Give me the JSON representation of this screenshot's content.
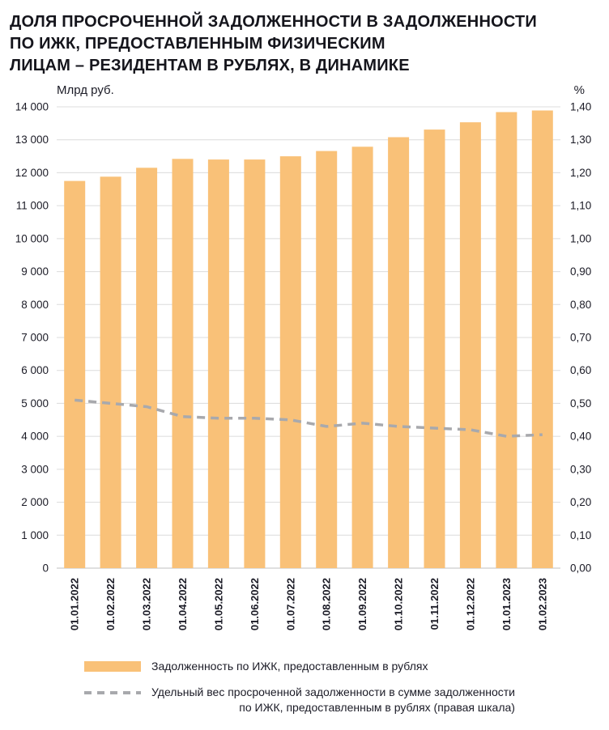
{
  "header": {
    "title_lines": [
      "ДОЛЯ ПРОСРОЧЕННОЙ ЗАДОЛЖЕННОСТИ В ЗАДОЛЖЕННОСТИ",
      "ПО ИЖК, ПРЕДОСТАВЛЕННЫМ ФИЗИЧЕСКИМ",
      "ЛИЦАМ – РЕЗИДЕНТАМ В РУБЛЯХ, В ДИНАМИКЕ"
    ],
    "left_unit": "Млрд руб.",
    "right_unit": "%"
  },
  "legend": {
    "bar_label": "Задолженность по ИЖК, предоставленным в рублях",
    "line_label_lines": [
      "Удельный вес просроченной задолженности в сумме задолженности",
      "по ИЖК, предоставленным в рублях (правая шкала)"
    ]
  },
  "colors": {
    "bar": "#F9C178",
    "line": "#A8A9AD",
    "grid": "#DCDCDC",
    "axis": "#BFBFBF",
    "text": "#1B1B26"
  },
  "chart_data": {
    "type": "bar",
    "title": "ДОЛЯ ПРОСРОЧЕННОЙ ЗАДОЛЖЕННОСТИ В ЗАДОЛЖЕННОСТИ ПО ИЖК, ПРЕДОСТАВЛЕННЫМ ФИЗИЧЕСКИМ ЛИЦАМ – РЕЗИДЕНТАМ В РУБЛЯХ, В ДИНАМИКЕ",
    "ylabel_left": "Млрд руб.",
    "ylabel_right": "%",
    "grid": true,
    "legend_position": "bottom",
    "categories": [
      "01.01.2022",
      "01.02.2022",
      "01.03.2022",
      "01.04.2022",
      "01.05.2022",
      "01.06.2022",
      "01.07.2022",
      "01.08.2022",
      "01.09.2022",
      "01.10.2022",
      "01.11.2022",
      "01.12.2022",
      "01.01.2023",
      "01.02.2023"
    ],
    "series": [
      {
        "name": "Задолженность по ИЖК, предоставленным в рублях",
        "type": "bar",
        "axis": "left",
        "values": [
          11750,
          11880,
          12150,
          12420,
          12400,
          12400,
          12500,
          12660,
          12790,
          13080,
          13310,
          13530,
          13840,
          13890
        ]
      },
      {
        "name": "Удельный вес просроченной задолженности в сумме задолженности по ИЖК, предоставленным в рублях (правая шкала)",
        "type": "line",
        "axis": "right",
        "dashed": true,
        "values": [
          0.51,
          0.5,
          0.49,
          0.46,
          0.455,
          0.455,
          0.45,
          0.43,
          0.44,
          0.43,
          0.425,
          0.42,
          0.4,
          0.405
        ]
      }
    ],
    "left_axis": {
      "min": 0,
      "max": 14000,
      "step": 1000,
      "tick_labels": [
        "0",
        "1 000",
        "2 000",
        "3 000",
        "4 000",
        "5 000",
        "6 000",
        "7 000",
        "8 000",
        "9 000",
        "10 000",
        "11 000",
        "12 000",
        "13 000",
        "14 000"
      ]
    },
    "right_axis": {
      "min": 0,
      "max": 1.4,
      "step": 0.1,
      "tick_labels": [
        "0,00",
        "0,10",
        "0,20",
        "0,30",
        "0,40",
        "0,50",
        "0,60",
        "0,70",
        "0,80",
        "0,90",
        "1,00",
        "1,10",
        "1,20",
        "1,30",
        "1,40"
      ]
    }
  }
}
